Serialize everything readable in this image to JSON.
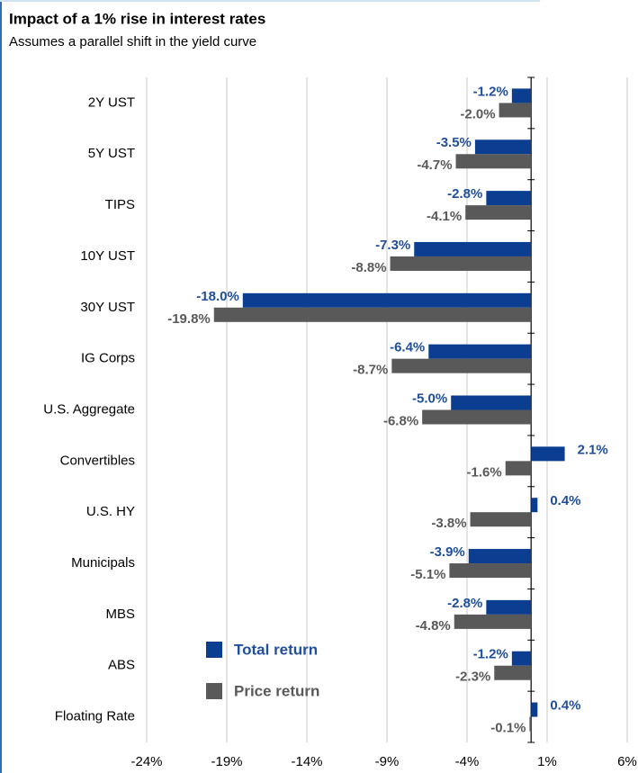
{
  "chart_data": {
    "type": "bar",
    "orientation": "horizontal",
    "title": "Impact of a 1% rise in interest rates",
    "subtitle": "Assumes a parallel shift in the yield curve",
    "categories": [
      "2Y UST",
      "5Y UST",
      "TIPS",
      "10Y UST",
      "30Y UST",
      "IG Corps",
      "U.S. Aggregate",
      "Convertibles",
      "U.S. HY",
      "Municipals",
      "MBS",
      "ABS",
      "Floating Rate"
    ],
    "series": [
      {
        "name": "Total return",
        "color": "#0b3d91",
        "values": [
          -1.2,
          -3.5,
          -2.8,
          -7.3,
          -18.0,
          -6.4,
          -5.0,
          2.1,
          0.4,
          -3.9,
          -2.8,
          -1.2,
          0.4
        ],
        "value_labels": [
          "-1.2%",
          "-3.5%",
          "-2.8%",
          "-7.3%",
          "-18.0%",
          "-6.4%",
          "-5.0%",
          "2.1%",
          "0.4%",
          "-3.9%",
          "-2.8%",
          "-1.2%",
          "0.4%"
        ]
      },
      {
        "name": "Price return",
        "color": "#595959",
        "values": [
          -2.0,
          -4.7,
          -4.1,
          -8.8,
          -19.8,
          -8.7,
          -6.8,
          -1.6,
          -3.8,
          -5.1,
          -4.8,
          -2.3,
          -0.1
        ],
        "value_labels": [
          "-2.0%",
          "-4.7%",
          "-4.1%",
          "-8.8%",
          "-19.8%",
          "-8.7%",
          "-6.8%",
          "-1.6%",
          "-3.8%",
          "-5.1%",
          "-4.8%",
          "-2.3%",
          "-0.1%"
        ]
      }
    ],
    "xlim": [
      -24,
      6
    ],
    "xticks": [
      {
        "value": -24,
        "label": "-24%"
      },
      {
        "value": -19,
        "label": "-19%"
      },
      {
        "value": -14,
        "label": "-14%"
      },
      {
        "value": -9,
        "label": "-9%"
      },
      {
        "value": -4,
        "label": "-4%"
      },
      {
        "value": 1,
        "label": "1%"
      },
      {
        "value": 6,
        "label": "6%"
      }
    ],
    "grid": true,
    "legend": "lower left"
  }
}
